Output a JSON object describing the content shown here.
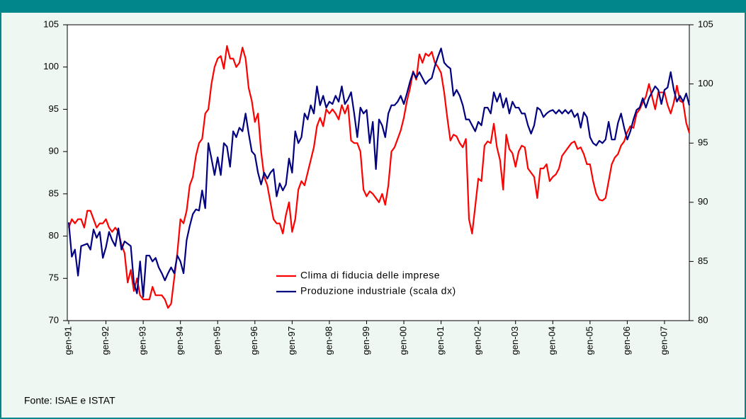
{
  "chart_data": {
    "type": "line",
    "categories": [
      "gen-91",
      null,
      null,
      null,
      null,
      null,
      null,
      null,
      null,
      null,
      null,
      null,
      "gen-92",
      null,
      null,
      null,
      null,
      null,
      null,
      null,
      null,
      null,
      null,
      null,
      "gen-93",
      null,
      null,
      null,
      null,
      null,
      null,
      null,
      null,
      null,
      null,
      null,
      "gen-94",
      null,
      null,
      null,
      null,
      null,
      null,
      null,
      null,
      null,
      null,
      null,
      "gen-95",
      null,
      null,
      null,
      null,
      null,
      null,
      null,
      null,
      null,
      null,
      null,
      "gen-96",
      null,
      null,
      null,
      null,
      null,
      null,
      null,
      null,
      null,
      null,
      null,
      "gen-97",
      null,
      null,
      null,
      null,
      null,
      null,
      null,
      null,
      null,
      null,
      null,
      "gen-98",
      null,
      null,
      null,
      null,
      null,
      null,
      null,
      null,
      null,
      null,
      null,
      "gen-99",
      null,
      null,
      null,
      null,
      null,
      null,
      null,
      null,
      null,
      null,
      null,
      "gen-00",
      null,
      null,
      null,
      null,
      null,
      null,
      null,
      null,
      null,
      null,
      null,
      "gen-01",
      null,
      null,
      null,
      null,
      null,
      null,
      null,
      null,
      null,
      null,
      null,
      "gen-02",
      null,
      null,
      null,
      null,
      null,
      null,
      null,
      null,
      null,
      null,
      null,
      "gen-03",
      null,
      null,
      null,
      null,
      null,
      null,
      null,
      null,
      null,
      null,
      null,
      "gen-04",
      null,
      null,
      null,
      null,
      null,
      null,
      null,
      null,
      null,
      null,
      null,
      "gen-05",
      null,
      null,
      null,
      null,
      null,
      null,
      null,
      null,
      null,
      null,
      null,
      "gen-06",
      null,
      null,
      null,
      null,
      null,
      null,
      null,
      null,
      null,
      null,
      null,
      "gen-07",
      null,
      null,
      null,
      null,
      null,
      null,
      null,
      null
    ],
    "series": [
      {
        "name": "Clima di fiducia delle imprese",
        "color": "#ff0000",
        "axis": "y",
        "values": [
          81,
          82,
          81.5,
          82,
          82,
          81,
          83,
          83,
          82,
          81,
          81.5,
          81.5,
          82,
          81,
          80.5,
          81,
          80.5,
          79,
          78,
          74.5,
          76,
          73.5,
          75,
          73,
          72.5,
          72.5,
          72.5,
          74,
          73,
          73,
          73,
          72.5,
          71.5,
          72,
          75,
          78,
          82,
          81.5,
          83,
          86,
          87,
          89.5,
          91,
          91.5,
          94.5,
          95,
          98,
          100,
          101,
          101.3,
          99.8,
          102.5,
          101,
          101,
          100,
          100.5,
          102.3,
          101,
          97.5,
          96,
          93.5,
          94.5,
          90,
          87,
          86,
          84,
          82,
          81.5,
          81.5,
          80.3,
          82.5,
          84,
          80.5,
          82,
          85.5,
          86.5,
          86,
          87.5,
          89,
          90.5,
          93,
          94,
          93,
          95,
          94.5,
          95,
          94.5,
          93.8,
          95.5,
          94.5,
          95.5,
          91.3,
          91,
          91,
          90,
          85.5,
          84.7,
          85.3,
          85,
          84.5,
          84,
          85,
          83.7,
          86,
          90,
          90.5,
          91.5,
          92.5,
          94,
          96,
          97.5,
          99.5,
          98.5,
          101.5,
          100.5,
          101.6,
          101.3,
          101.8,
          100.5,
          100,
          99.3,
          97,
          94,
          91.3,
          92,
          91.8,
          91,
          90.5,
          91.5,
          82,
          80.3,
          83.5,
          86.8,
          86.5,
          90.7,
          91.2,
          91,
          93.3,
          90.5,
          89,
          85.5,
          92,
          90.3,
          89.8,
          88.2,
          90,
          90.7,
          90.5,
          88,
          87.5,
          87,
          84.5,
          88,
          88,
          88.5,
          86.5,
          87,
          87.3,
          88,
          89.5,
          90,
          90.5,
          91,
          91.2,
          90.3,
          90.5,
          89.7,
          88.5,
          88.5,
          86.5,
          85,
          84.3,
          84.2,
          84.5,
          86.5,
          88.5,
          89.3,
          89.7,
          90.7,
          91.2,
          92.3,
          93,
          92.8,
          94.5,
          95,
          95.8,
          96.5,
          98,
          96.5,
          95,
          97,
          97,
          97,
          95.5,
          94.5,
          95.8,
          97.8,
          96,
          95.8,
          93.4,
          92.2
        ]
      },
      {
        "name": "Produzione industriale (scala dx)",
        "color": "#000080",
        "axis": "y2",
        "values": [
          88.3,
          85.4,
          86,
          83.8,
          86.3,
          86.4,
          86.5,
          86,
          87.7,
          87,
          87.5,
          85.3,
          86.2,
          87.5,
          86.8,
          86.3,
          87.8,
          86,
          86.7,
          86.5,
          86.3,
          83.2,
          82.3,
          85,
          82,
          85.5,
          85.5,
          85,
          85.3,
          84.5,
          84,
          83.4,
          84,
          84.5,
          84,
          85.5,
          85,
          84,
          86.8,
          88,
          89,
          89.4,
          89.3,
          91,
          89.5,
          95,
          93.7,
          92.3,
          93.8,
          92.3,
          95,
          94.7,
          93,
          96,
          95.5,
          96.3,
          96,
          97.5,
          95.8,
          94.3,
          94,
          92.5,
          91.5,
          92.5,
          92,
          92.5,
          92.8,
          90.5,
          91.6,
          91,
          91.5,
          93.7,
          92.5,
          96,
          95,
          95.5,
          97.5,
          97,
          98.2,
          97.5,
          99.8,
          98.2,
          99,
          98,
          98.5,
          98.3,
          99,
          98.5,
          99.8,
          98.3,
          98.7,
          99.3,
          97.5,
          95.5,
          98,
          97.5,
          97.8,
          95,
          96.8,
          92.8,
          97,
          96.5,
          95.5,
          97.5,
          98.2,
          98.2,
          98.5,
          99,
          98.3,
          99.2,
          100.2,
          101,
          100.5,
          101,
          100.5,
          100,
          100.3,
          100.5,
          101.5,
          102.3,
          103,
          101.8,
          101.5,
          101.3,
          99,
          99.5,
          99,
          98.2,
          97,
          97,
          96.5,
          96,
          96.8,
          96.5,
          98,
          98,
          97.5,
          99.3,
          98.5,
          99.2,
          98,
          98.8,
          97.5,
          98.5,
          98,
          98,
          97.5,
          97.5,
          96.5,
          95.8,
          96.5,
          98,
          97.8,
          97.2,
          97.5,
          97.7,
          97.8,
          97.5,
          97.8,
          97.5,
          97.8,
          97.5,
          97.8,
          97.2,
          97.5,
          96.3,
          97.6,
          97.2,
          95.5,
          95,
          94.8,
          95.2,
          95,
          95.3,
          96.8,
          95.3,
          95.3,
          96.7,
          97.5,
          96.3,
          95.3,
          96,
          97,
          97.8,
          98,
          98.8,
          98,
          98.8,
          99.3,
          99.8,
          99.5,
          98.3,
          99.5,
          99.7,
          101,
          99.5,
          98.5,
          99,
          98.5,
          99.2,
          98.2
        ]
      }
    ],
    "ylim": [
      70,
      105
    ],
    "yticks": [
      70,
      75,
      80,
      85,
      90,
      95,
      100,
      105
    ],
    "y2lim": [
      80,
      105
    ],
    "y2ticks": [
      80,
      85,
      90,
      95,
      100,
      105
    ],
    "source": "Fonte: ISAE e ISTAT"
  }
}
